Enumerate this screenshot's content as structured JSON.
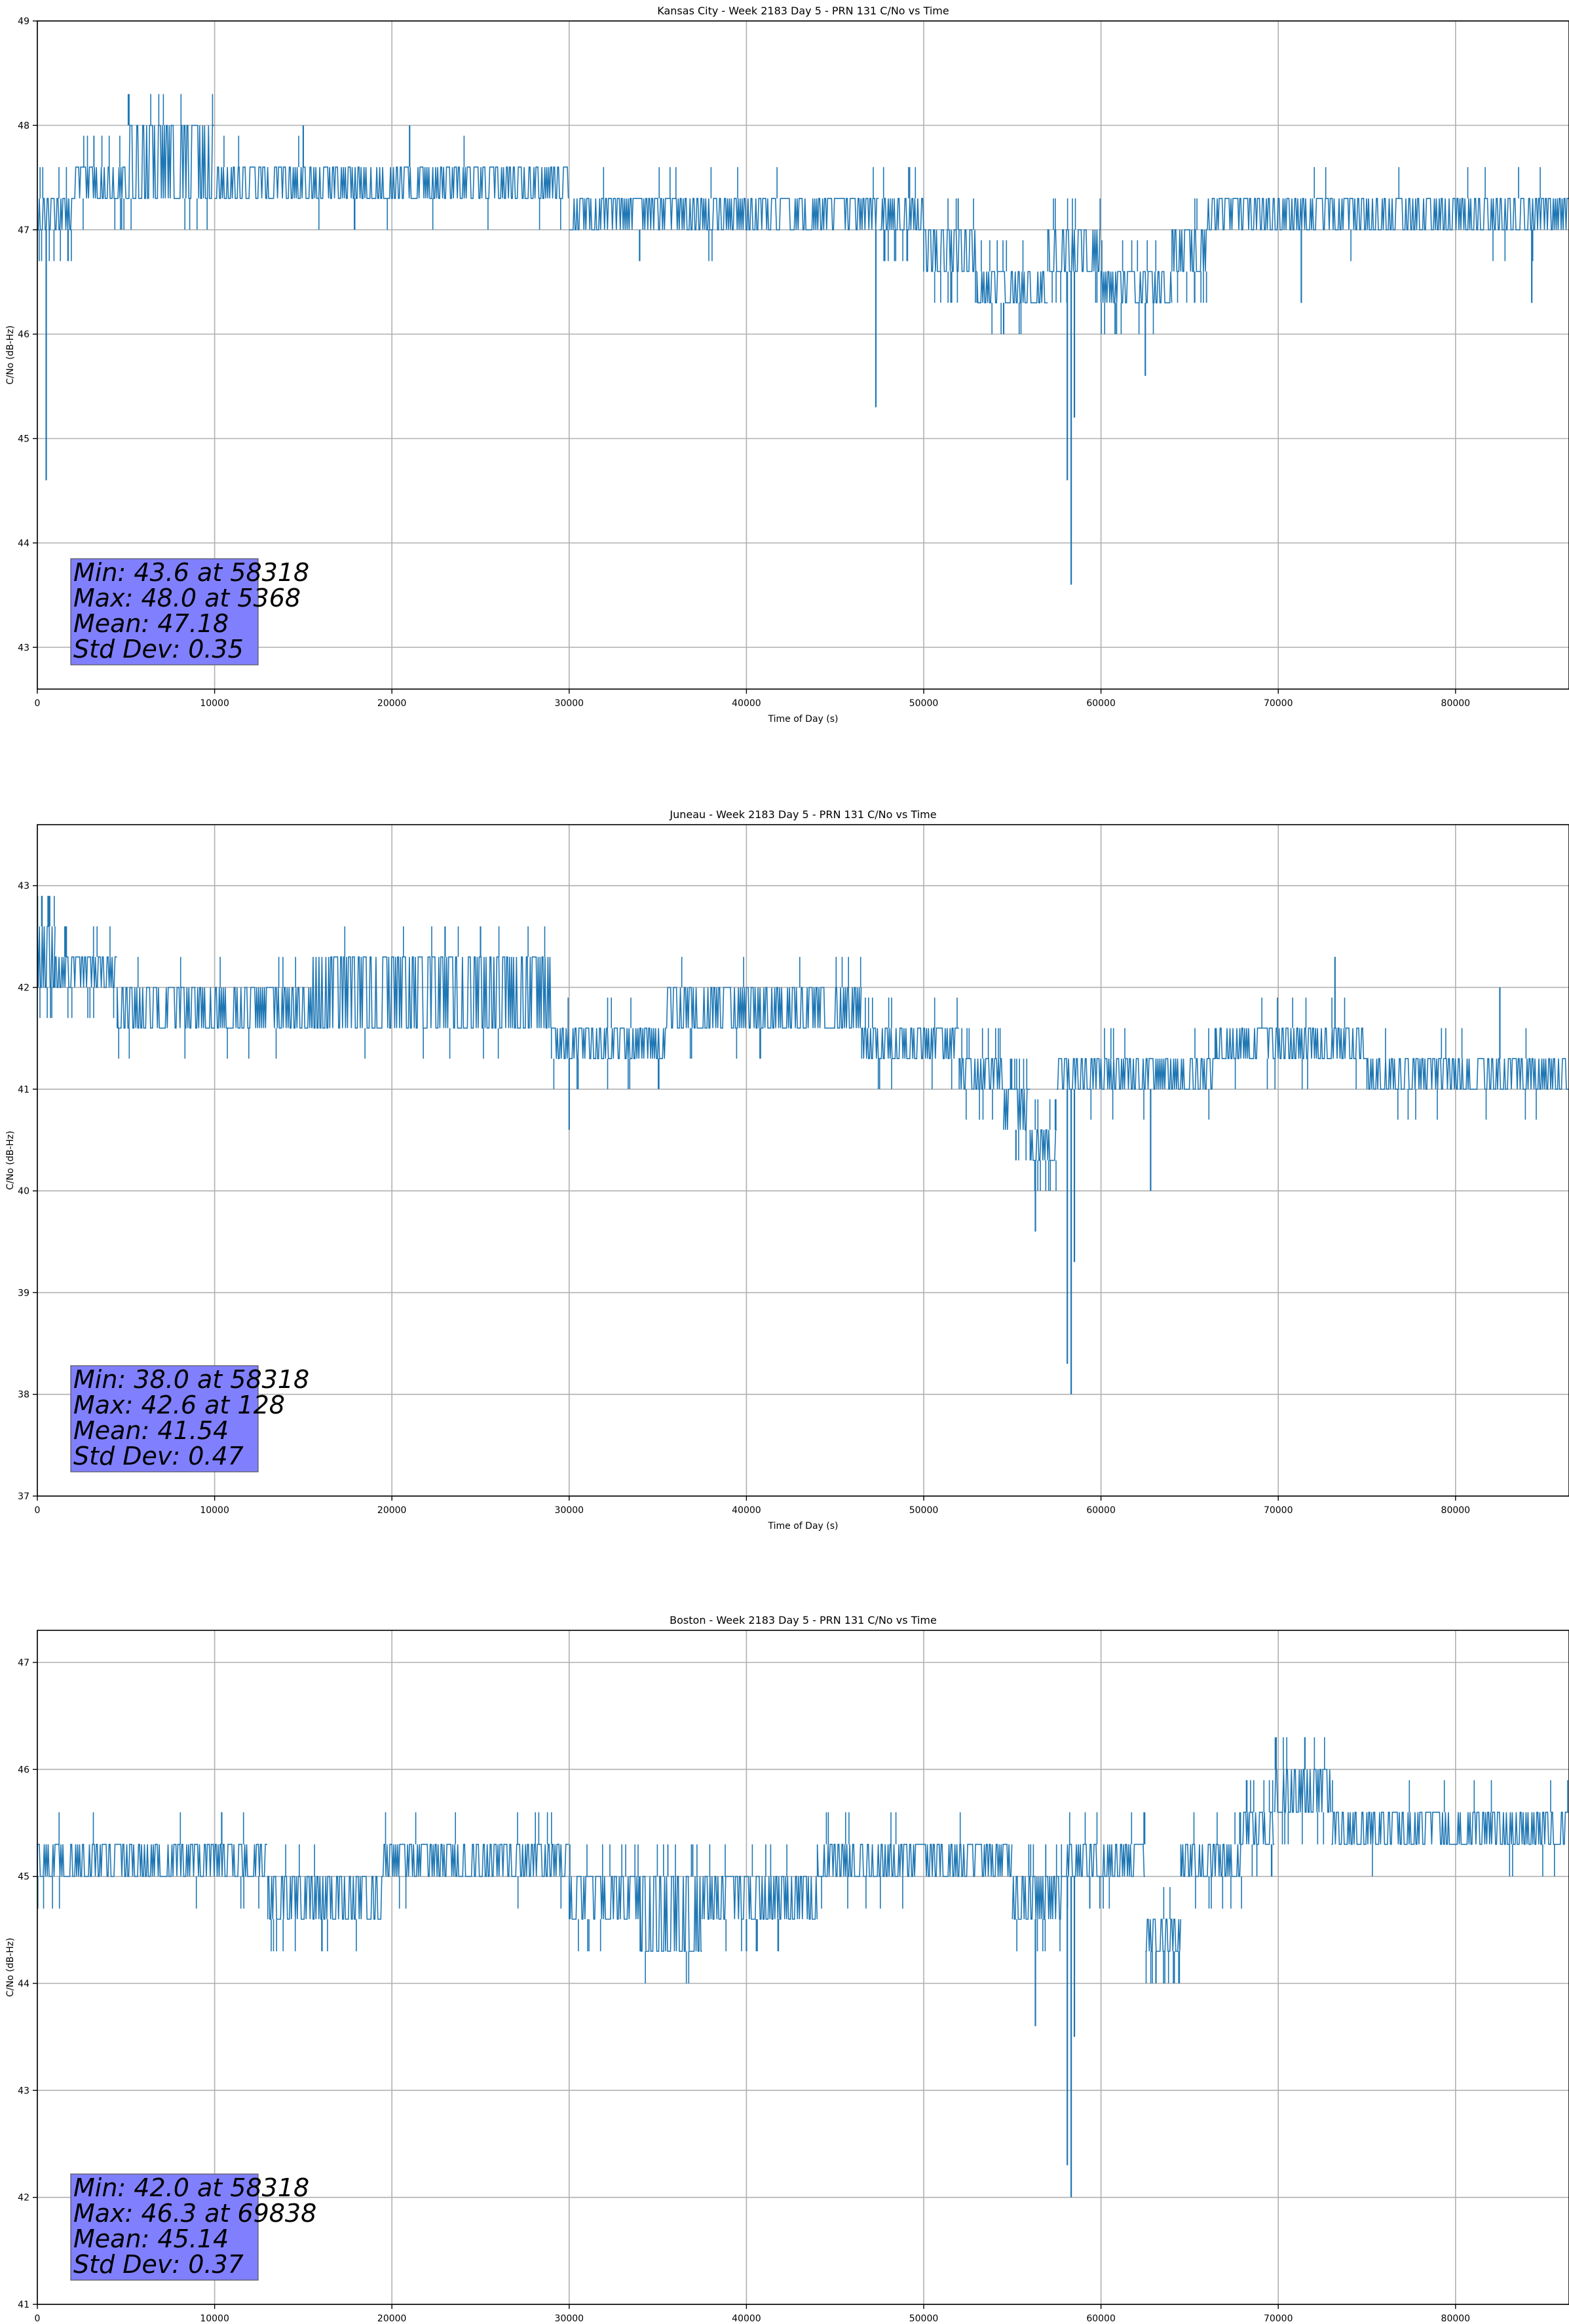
{
  "figure": {
    "title": "Week 2183 Day 5 - PRN 131 C/No vs Time"
  },
  "chart_data": [
    {
      "type": "line",
      "title": "Kansas City - Week 2183 Day 5 - PRN 131 C/No vs Time",
      "xlabel": "Time of Day (s)",
      "ylabel": "C/No (dB-Hz)",
      "xlim": [
        0,
        86400
      ],
      "ylim": [
        42.6,
        49.0
      ],
      "xticks": [
        0,
        10000,
        20000,
        30000,
        40000,
        50000,
        60000,
        70000,
        80000
      ],
      "yticks": [
        43,
        44,
        45,
        46,
        47,
        48,
        49
      ],
      "grid": true,
      "line_color": "#1f77b4",
      "stats_box_color": "#8080ff",
      "stats": [
        "Min: 43.6 at 58318",
        "Max: 48.0 at 5368",
        "Mean: 47.18",
        "Std Dev: 0.35"
      ],
      "segments": [
        {
          "x": [
            0,
            2000
          ],
          "low": 47.0,
          "high": 47.3
        },
        {
          "x": [
            2000,
            5000
          ],
          "low": 47.3,
          "high": 47.6
        },
        {
          "x": [
            5000,
            10000
          ],
          "low": 47.3,
          "high": 48.0
        },
        {
          "x": [
            10000,
            30000
          ],
          "low": 47.3,
          "high": 47.6
        },
        {
          "x": [
            30000,
            47500
          ],
          "low": 47.0,
          "high": 47.3
        },
        {
          "x": [
            47500,
            50000
          ],
          "low": 47.0,
          "high": 47.3
        },
        {
          "x": [
            50000,
            53000
          ],
          "low": 46.6,
          "high": 47.0
        },
        {
          "x": [
            53000,
            57000
          ],
          "low": 46.3,
          "high": 46.6
        },
        {
          "x": [
            57000,
            60000
          ],
          "low": 46.6,
          "high": 47.0
        },
        {
          "x": [
            60000,
            64000
          ],
          "low": 46.3,
          "high": 46.6
        },
        {
          "x": [
            64000,
            66000
          ],
          "low": 46.6,
          "high": 47.0
        },
        {
          "x": [
            66000,
            86400
          ],
          "low": 47.0,
          "high": 47.3
        }
      ],
      "spikes": [
        {
          "x": 500,
          "y": 44.6
        },
        {
          "x": 47300,
          "y": 45.3
        },
        {
          "x": 58318,
          "y": 43.6
        },
        {
          "x": 58100,
          "y": 44.6
        },
        {
          "x": 58500,
          "y": 45.2
        },
        {
          "x": 62500,
          "y": 45.6
        },
        {
          "x": 60800,
          "y": 46.0
        },
        {
          "x": 71300,
          "y": 46.3
        },
        {
          "x": 84300,
          "y": 46.3
        },
        {
          "x": 5368,
          "y": 48.0
        },
        {
          "x": 15000,
          "y": 48.0
        },
        {
          "x": 21000,
          "y": 48.0
        }
      ]
    },
    {
      "type": "line",
      "title": "Juneau - Week 2183 Day 5 - PRN 131 C/No vs Time",
      "xlabel": "Time of Day (s)",
      "ylabel": "C/No (dB-Hz)",
      "xlim": [
        0,
        86400
      ],
      "ylim": [
        37.0,
        43.6
      ],
      "xticks": [
        0,
        10000,
        20000,
        30000,
        40000,
        50000,
        60000,
        70000,
        80000
      ],
      "yticks": [
        37,
        38,
        39,
        40,
        41,
        42,
        43
      ],
      "grid": true,
      "line_color": "#1f77b4",
      "stats_box_color": "#8080ff",
      "stats": [
        "Min: 38.0 at 58318",
        "Max: 42.6 at 128",
        "Mean: 41.54",
        "Std Dev: 0.47"
      ],
      "segments": [
        {
          "x": [
            0,
            1000
          ],
          "low": 42.0,
          "high": 42.6
        },
        {
          "x": [
            1000,
            4500
          ],
          "low": 42.0,
          "high": 42.3
        },
        {
          "x": [
            4500,
            15500
          ],
          "low": 41.6,
          "high": 42.0
        },
        {
          "x": [
            15500,
            29000
          ],
          "low": 41.6,
          "high": 42.3
        },
        {
          "x": [
            29000,
            35500
          ],
          "low": 41.3,
          "high": 41.6
        },
        {
          "x": [
            35500,
            46500
          ],
          "low": 41.6,
          "high": 42.0
        },
        {
          "x": [
            46500,
            52000
          ],
          "low": 41.3,
          "high": 41.6
        },
        {
          "x": [
            52000,
            54500
          ],
          "low": 41.0,
          "high": 41.3
        },
        {
          "x": [
            54500,
            56000
          ],
          "low": 40.6,
          "high": 41.0
        },
        {
          "x": [
            56000,
            57500
          ],
          "low": 40.3,
          "high": 40.6
        },
        {
          "x": [
            57500,
            66500
          ],
          "low": 41.0,
          "high": 41.3
        },
        {
          "x": [
            66500,
            75000
          ],
          "low": 41.3,
          "high": 41.6
        },
        {
          "x": [
            75000,
            86400
          ],
          "low": 41.0,
          "high": 41.3
        }
      ],
      "spikes": [
        {
          "x": 58318,
          "y": 38.0
        },
        {
          "x": 58100,
          "y": 38.3
        },
        {
          "x": 58500,
          "y": 39.3
        },
        {
          "x": 56300,
          "y": 39.6
        },
        {
          "x": 62800,
          "y": 40.0
        },
        {
          "x": 128,
          "y": 42.6
        },
        {
          "x": 23000,
          "y": 42.6
        },
        {
          "x": 25000,
          "y": 42.6
        },
        {
          "x": 73200,
          "y": 42.3
        },
        {
          "x": 82500,
          "y": 42.0
        },
        {
          "x": 30000,
          "y": 40.6
        }
      ]
    },
    {
      "type": "line",
      "title": "Boston - Week 2183 Day 5 - PRN 131 C/No vs Time",
      "xlabel": "Time of Day (s)",
      "ylabel": "C/No (dB-Hz)",
      "xlim": [
        0,
        86400
      ],
      "ylim": [
        41.0,
        47.3
      ],
      "xticks": [
        0,
        10000,
        20000,
        30000,
        40000,
        50000,
        60000,
        70000,
        80000
      ],
      "yticks": [
        41,
        42,
        43,
        44,
        45,
        46,
        47
      ],
      "grid": true,
      "line_color": "#1f77b4",
      "stats_box_color": "#8080ff",
      "stats": [
        "Min: 42.0 at 58318",
        "Max: 46.3 at 69838",
        "Mean: 45.14",
        "Std Dev: 0.37"
      ],
      "segments": [
        {
          "x": [
            0,
            13000
          ],
          "low": 45.0,
          "high": 45.3
        },
        {
          "x": [
            13000,
            19500
          ],
          "low": 44.6,
          "high": 45.0
        },
        {
          "x": [
            19500,
            30000
          ],
          "low": 45.0,
          "high": 45.3
        },
        {
          "x": [
            30000,
            34000
          ],
          "low": 44.6,
          "high": 45.0
        },
        {
          "x": [
            34000,
            37500
          ],
          "low": 44.3,
          "high": 45.0
        },
        {
          "x": [
            37500,
            44000
          ],
          "low": 44.6,
          "high": 45.0
        },
        {
          "x": [
            44000,
            55000
          ],
          "low": 45.0,
          "high": 45.3
        },
        {
          "x": [
            55000,
            58000
          ],
          "low": 44.6,
          "high": 45.0
        },
        {
          "x": [
            58000,
            62500
          ],
          "low": 45.0,
          "high": 45.3
        },
        {
          "x": [
            62500,
            64500
          ],
          "low": 44.3,
          "high": 44.6
        },
        {
          "x": [
            64500,
            68000
          ],
          "low": 45.0,
          "high": 45.3
        },
        {
          "x": [
            68000,
            69800
          ],
          "low": 45.3,
          "high": 45.6
        },
        {
          "x": [
            69800,
            73000
          ],
          "low": 45.6,
          "high": 46.0
        },
        {
          "x": [
            73000,
            86400
          ],
          "low": 45.3,
          "high": 45.6
        }
      ],
      "spikes": [
        {
          "x": 58318,
          "y": 42.0
        },
        {
          "x": 58100,
          "y": 42.3
        },
        {
          "x": 58500,
          "y": 43.5
        },
        {
          "x": 56300,
          "y": 43.6
        },
        {
          "x": 63100,
          "y": 44.0
        },
        {
          "x": 69838,
          "y": 46.3
        },
        {
          "x": 71500,
          "y": 46.3
        },
        {
          "x": 10400,
          "y": 45.6
        },
        {
          "x": 40000,
          "y": 44.3
        }
      ]
    }
  ]
}
